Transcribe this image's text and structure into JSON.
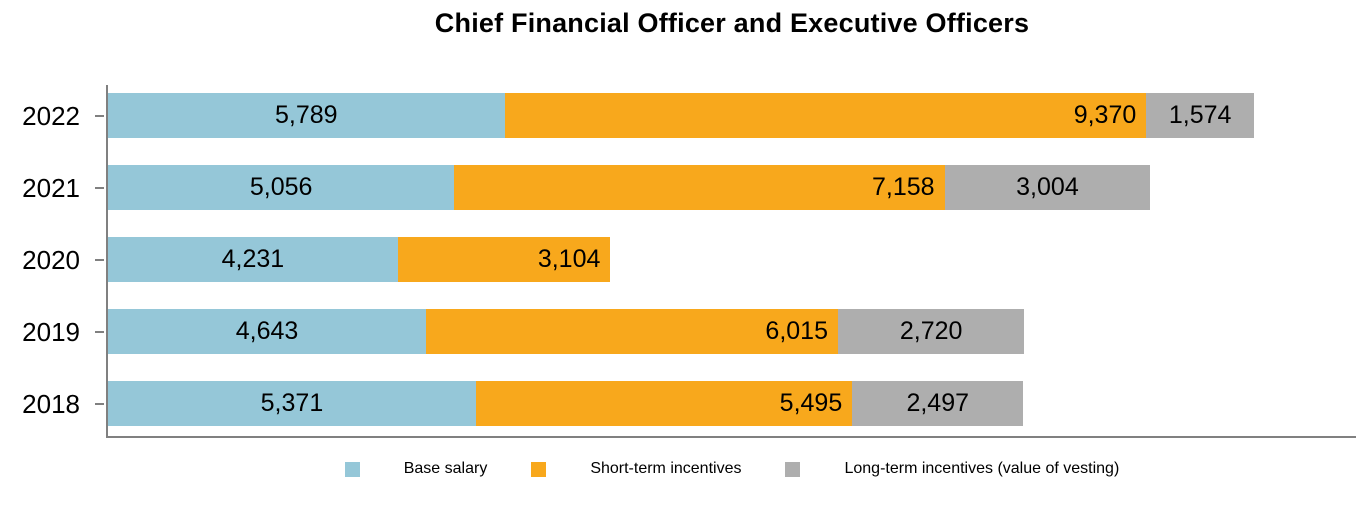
{
  "chart_data": {
    "type": "bar",
    "orientation": "horizontal",
    "stacked": true,
    "title": "Chief Financial Officer and Executive Officers",
    "categories": [
      "2022",
      "2021",
      "2020",
      "2019",
      "2018"
    ],
    "series": [
      {
        "name": "Base salary",
        "color": "#95C7D8",
        "label_align": "center",
        "values": [
          5789,
          5056,
          4231,
          4643,
          5371
        ]
      },
      {
        "name": "Short-term incentives",
        "color": "#F8A81C",
        "label_align": "right",
        "values": [
          9370,
          7158,
          3104,
          6015,
          5495
        ]
      },
      {
        "name": "Long-term incentives (value of vesting)",
        "color": "#AEAEAE",
        "label_align": "center",
        "values": [
          1574,
          3004,
          0,
          2720,
          2497
        ]
      }
    ],
    "row_totals": [
      16733,
      15218,
      7335,
      13378,
      13363
    ],
    "xlim": [
      0,
      18250
    ],
    "grid": false,
    "value_format": "comma-thousands",
    "legend_position": "bottom",
    "axis_color": "#808080",
    "text_color": "#000000"
  }
}
